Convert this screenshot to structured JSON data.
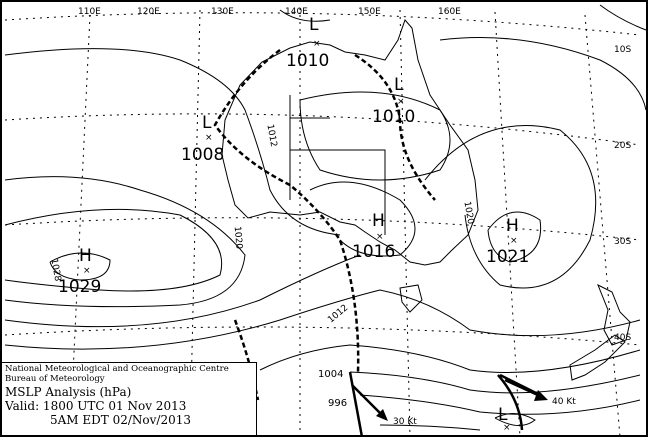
{
  "map": {
    "title": "MSLP Analysis (hPa)",
    "agency": "National Meteorological and Oceanographic Centre",
    "bureau": "Bureau of Meteorology",
    "valid_utc": "Valid: 1800 UTC 01 Nov 2013",
    "valid_local": "5AM EDT 02/Nov/2013",
    "longitude_labels": [
      "110E",
      "120E",
      "130E",
      "140E",
      "150E",
      "160E"
    ],
    "latitude_labels": [
      "10S",
      "20S",
      "30S",
      "40S"
    ],
    "pressure_systems": [
      {
        "type": "L",
        "value": "1010"
      },
      {
        "type": "L",
        "value": "1010"
      },
      {
        "type": "L",
        "value": "1008"
      },
      {
        "type": "H",
        "value": "1016"
      },
      {
        "type": "H",
        "value": "1021"
      },
      {
        "type": "H",
        "value": "1029"
      },
      {
        "type": "L",
        "value": ""
      }
    ],
    "isobar_labels": [
      "1012",
      "1020",
      "1028",
      "1020",
      "1012",
      "1004",
      "996"
    ],
    "wind_labels": [
      "30 Kt",
      "40 Kt"
    ]
  }
}
